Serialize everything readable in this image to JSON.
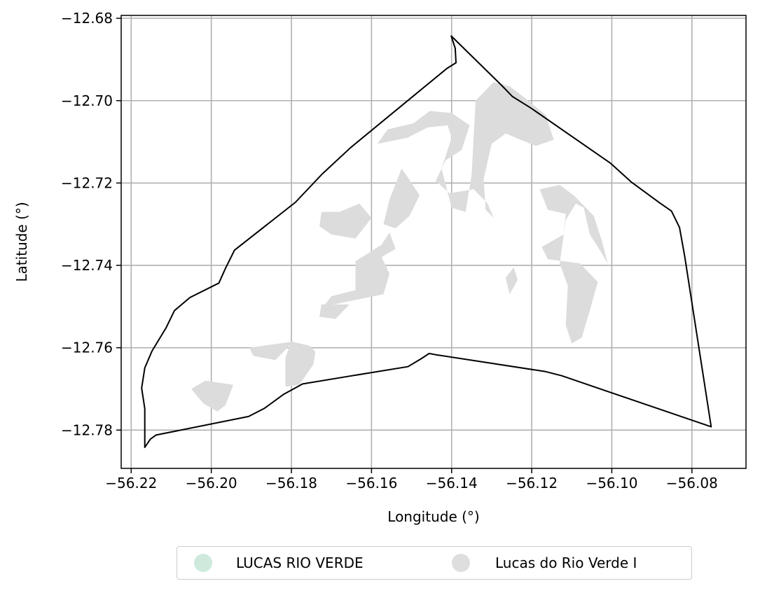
{
  "chart_data": {
    "type": "map",
    "xlabel": "Longitude (°)",
    "ylabel": "Latitude (°)",
    "xlim": [
      -56.2225,
      -56.0665
    ],
    "ylim": [
      -12.7893,
      -12.6793
    ],
    "xticks": [
      -56.22,
      -56.2,
      -56.18,
      -56.16,
      -56.14,
      -56.12,
      -56.1,
      -56.08
    ],
    "yticks": [
      -12.68,
      -12.7,
      -12.72,
      -12.74,
      -12.76,
      -12.78
    ],
    "grid": true,
    "legend_position": "bottom-center",
    "legend": [
      {
        "label": "LUCAS RIO VERDE",
        "color": "#cfeadd"
      },
      {
        "label": "Lucas do Rio Verde I",
        "color": "#dedede"
      }
    ],
    "boundary_name": "LUCAS RIO VERDE",
    "boundary_color": "#000000",
    "fill_color": "#dcdcdc",
    "boundary": [
      [
        -56.1401,
        -12.6843
      ],
      [
        -56.1391,
        -12.6873
      ],
      [
        -56.1389,
        -12.6908
      ],
      [
        -56.1412,
        -12.6922
      ],
      [
        -56.1482,
        -12.6978
      ],
      [
        -56.1652,
        -12.7114
      ],
      [
        -56.1723,
        -12.7178
      ],
      [
        -56.179,
        -12.7247
      ],
      [
        -56.1942,
        -12.7363
      ],
      [
        -56.1965,
        -12.7408
      ],
      [
        -56.1981,
        -12.7443
      ],
      [
        -56.2053,
        -12.7478
      ],
      [
        -56.2092,
        -12.751
      ],
      [
        -56.2113,
        -12.7552
      ],
      [
        -56.2148,
        -12.7608
      ],
      [
        -56.2166,
        -12.7649
      ],
      [
        -56.2174,
        -12.7698
      ],
      [
        -56.2166,
        -12.7748
      ],
      [
        -56.2166,
        -12.7842
      ],
      [
        -56.2152,
        -12.7822
      ],
      [
        -56.2138,
        -12.7812
      ],
      [
        -56.1907,
        -12.7767
      ],
      [
        -56.1867,
        -12.7747
      ],
      [
        -56.1819,
        -12.7713
      ],
      [
        -56.1772,
        -12.7688
      ],
      [
        -56.1654,
        -12.7669
      ],
      [
        -56.1509,
        -12.7646
      ],
      [
        -56.1478,
        -12.7628
      ],
      [
        -56.1456,
        -12.7614
      ],
      [
        -56.1439,
        -12.7617
      ],
      [
        -56.1165,
        -12.7658
      ],
      [
        -56.1125,
        -12.7668
      ],
      [
        -56.0752,
        -12.7792
      ],
      [
        -56.0818,
        -12.7378
      ],
      [
        -56.0831,
        -12.7308
      ],
      [
        -56.0851,
        -12.7268
      ],
      [
        -56.0881,
        -12.7248
      ],
      [
        -56.0951,
        -12.7198
      ],
      [
        -56.1003,
        -12.7152
      ],
      [
        -56.1202,
        -12.7018
      ],
      [
        -56.1248,
        -12.699
      ],
      [
        -56.1275,
        -12.6963
      ],
      [
        -56.1401,
        -12.6843
      ]
    ],
    "parcels": [
      [
        [
          -56.1295,
          -12.6955
        ],
        [
          -56.1255,
          -12.6965
        ],
        [
          -56.1215,
          -12.6995
        ],
        [
          -56.1165,
          -12.7035
        ],
        [
          -56.1145,
          -12.7095
        ],
        [
          -56.119,
          -12.711
        ],
        [
          -56.1265,
          -12.708
        ],
        [
          -56.13,
          -12.7105
        ],
        [
          -56.132,
          -12.719
        ],
        [
          -56.1315,
          -12.7265
        ],
        [
          -56.1295,
          -12.7285
        ],
        [
          -56.131,
          -12.725
        ],
        [
          -56.1345,
          -12.7215
        ],
        [
          -56.1405,
          -12.7225
        ],
        [
          -56.144,
          -12.7195
        ],
        [
          -56.1415,
          -12.7145
        ],
        [
          -56.1375,
          -12.712
        ],
        [
          -56.1355,
          -12.706
        ],
        [
          -56.14,
          -12.703
        ],
        [
          -56.1455,
          -12.7025
        ],
        [
          -56.1495,
          -12.7055
        ],
        [
          -56.156,
          -12.707
        ],
        [
          -56.1585,
          -12.7105
        ],
        [
          -56.151,
          -12.709
        ],
        [
          -56.146,
          -12.7065
        ],
        [
          -56.141,
          -12.706
        ],
        [
          -56.14,
          -12.709
        ],
        [
          -56.1425,
          -12.7165
        ],
        [
          -56.14,
          -12.726
        ],
        [
          -56.1365,
          -12.727
        ],
        [
          -56.135,
          -12.718
        ],
        [
          -56.134,
          -12.7
        ],
        [
          -56.1295,
          -12.6955
        ]
      ],
      [
        [
          -56.118,
          -12.7215
        ],
        [
          -56.113,
          -12.7205
        ],
        [
          -56.1095,
          -12.723
        ],
        [
          -56.1045,
          -12.728
        ],
        [
          -56.1025,
          -12.734
        ],
        [
          -56.101,
          -12.7395
        ],
        [
          -56.1035,
          -12.7355
        ],
        [
          -56.1055,
          -12.7325
        ],
        [
          -56.107,
          -12.726
        ],
        [
          -56.109,
          -12.725
        ],
        [
          -56.1115,
          -12.729
        ],
        [
          -56.113,
          -12.7395
        ],
        [
          -56.111,
          -12.745
        ],
        [
          -56.1115,
          -12.7545
        ],
        [
          -56.11,
          -12.759
        ],
        [
          -56.1075,
          -12.7575
        ],
        [
          -56.1055,
          -12.751
        ],
        [
          -56.1035,
          -12.744
        ],
        [
          -56.108,
          -12.7395
        ],
        [
          -56.116,
          -12.7385
        ],
        [
          -56.1175,
          -12.7355
        ],
        [
          -56.112,
          -12.7325
        ],
        [
          -56.1115,
          -12.7275
        ],
        [
          -56.116,
          -12.7265
        ],
        [
          -56.118,
          -12.7215
        ]
      ],
      [
        [
          -56.1555,
          -12.732
        ],
        [
          -56.1575,
          -12.735
        ],
        [
          -56.164,
          -12.739
        ],
        [
          -56.164,
          -12.746
        ],
        [
          -56.17,
          -12.7475
        ],
        [
          -56.172,
          -12.75
        ],
        [
          -56.1645,
          -12.7485
        ],
        [
          -56.157,
          -12.747
        ],
        [
          -56.1555,
          -12.742
        ],
        [
          -56.1575,
          -12.738
        ],
        [
          -56.154,
          -12.736
        ],
        [
          -56.1555,
          -12.732
        ]
      ],
      [
        [
          -56.16,
          -12.7285
        ],
        [
          -56.163,
          -12.725
        ],
        [
          -56.168,
          -12.727
        ],
        [
          -56.1725,
          -12.727
        ],
        [
          -56.173,
          -12.7305
        ],
        [
          -56.17,
          -12.7325
        ],
        [
          -56.164,
          -12.7335
        ],
        [
          -56.16,
          -12.7285
        ]
      ],
      [
        [
          -56.1525,
          -12.7165
        ],
        [
          -56.1555,
          -12.724
        ],
        [
          -56.157,
          -12.73
        ],
        [
          -56.154,
          -12.731
        ],
        [
          -56.1505,
          -12.728
        ],
        [
          -56.148,
          -12.723
        ],
        [
          -56.151,
          -12.7185
        ],
        [
          -56.1525,
          -12.7165
        ]
      ],
      [
        [
          -56.1755,
          -12.7595
        ],
        [
          -56.18,
          -12.7585
        ],
        [
          -56.1815,
          -12.7625
        ],
        [
          -56.1815,
          -12.7695
        ],
        [
          -56.178,
          -12.769
        ],
        [
          -56.1745,
          -12.764
        ],
        [
          -56.174,
          -12.761
        ],
        [
          -56.1755,
          -12.7595
        ]
      ],
      [
        [
          -56.1655,
          -12.7495
        ],
        [
          -56.1725,
          -12.7495
        ],
        [
          -56.173,
          -12.7525
        ],
        [
          -56.169,
          -12.753
        ],
        [
          -56.1655,
          -12.7495
        ]
      ],
      [
        [
          -56.1795,
          -12.7585
        ],
        [
          -56.1905,
          -12.76
        ],
        [
          -56.1895,
          -12.762
        ],
        [
          -56.184,
          -12.763
        ],
        [
          -56.1795,
          -12.7585
        ]
      ],
      [
        [
          -56.1945,
          -12.769
        ],
        [
          -56.2015,
          -12.768
        ],
        [
          -56.205,
          -12.77
        ],
        [
          -56.202,
          -12.7735
        ],
        [
          -56.1985,
          -12.7755
        ],
        [
          -56.1965,
          -12.774
        ],
        [
          -56.1945,
          -12.769
        ]
      ],
      [
        [
          -56.1255,
          -12.747
        ],
        [
          -56.1235,
          -12.7435
        ],
        [
          -56.1245,
          -12.7405
        ],
        [
          -56.1265,
          -12.743
        ],
        [
          -56.1255,
          -12.747
        ]
      ]
    ]
  }
}
